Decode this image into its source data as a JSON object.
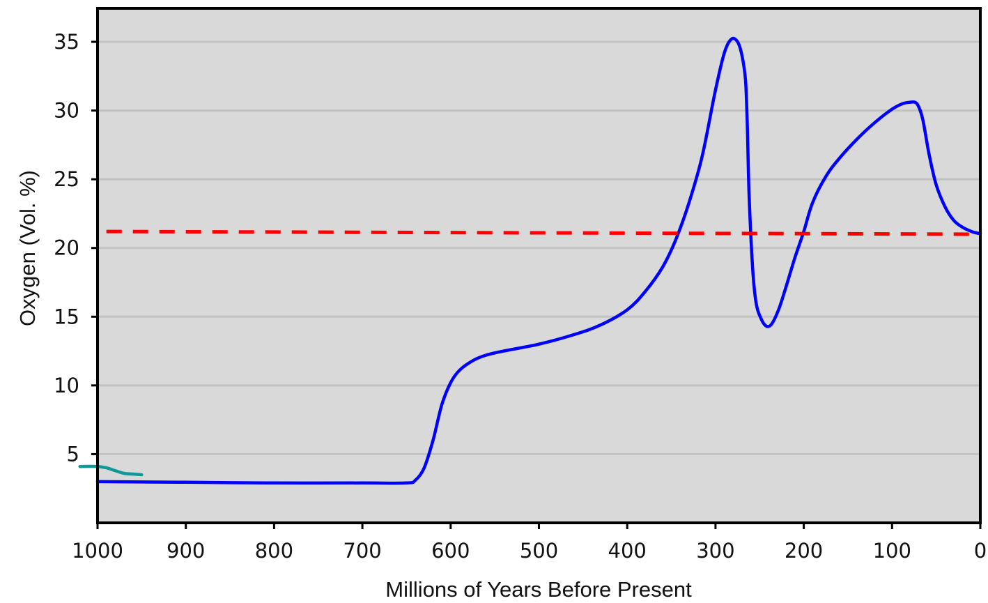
{
  "chart_data": {
    "type": "line",
    "title": "",
    "xlabel": "Millions of Years Before Present",
    "ylabel": "Oxygen (Vol. %)",
    "xlim": [
      1000,
      0
    ],
    "ylim": [
      0,
      35
    ],
    "x_ticks": [
      1000,
      900,
      800,
      700,
      600,
      500,
      400,
      300,
      200,
      100,
      0
    ],
    "y_ticks": [
      5,
      10,
      15,
      20,
      25,
      30,
      35
    ],
    "grid": "horizontal",
    "legend": "none",
    "series": [
      {
        "color": "#0000ff",
        "style": "solid",
        "x": [
          1000,
          900,
          800,
          700,
          650,
          640,
          630,
          620,
          610,
          600,
          590,
          575,
          560,
          540,
          500,
          460,
          430,
          400,
          380,
          360,
          345,
          330,
          315,
          300,
          290,
          282,
          275,
          270,
          266,
          264,
          262,
          258,
          254,
          248,
          242,
          236,
          228,
          220,
          210,
          200,
          190,
          175,
          160,
          140,
          120,
          100,
          88,
          80,
          74,
          70,
          65,
          58,
          50,
          40,
          30,
          20,
          10,
          5,
          0
        ],
        "y": [
          3.0,
          2.95,
          2.9,
          2.9,
          2.9,
          3.1,
          4.0,
          6.0,
          8.6,
          10.2,
          11.1,
          11.8,
          12.2,
          12.5,
          13.0,
          13.7,
          14.4,
          15.5,
          16.8,
          18.6,
          20.6,
          23.3,
          26.7,
          31.5,
          34.2,
          35.2,
          35.0,
          34.0,
          32.2,
          29.0,
          24.0,
          18.6,
          16.0,
          14.8,
          14.3,
          14.5,
          15.6,
          17.2,
          19.3,
          21.2,
          23.3,
          25.2,
          26.5,
          27.9,
          29.1,
          30.1,
          30.5,
          30.6,
          30.6,
          30.3,
          29.3,
          26.8,
          24.6,
          23.0,
          22.0,
          21.5,
          21.2,
          21.1,
          21.05
        ]
      },
      {
        "color": "#ff0000",
        "style": "dashed",
        "x": [
          990,
          0
        ],
        "y": [
          21.2,
          21.0
        ]
      },
      {
        "color": "#119999",
        "style": "solid",
        "x": [
          1020,
          1000,
          990,
          980,
          970,
          960,
          950
        ],
        "y": [
          4.1,
          4.1,
          4.0,
          3.8,
          3.6,
          3.55,
          3.5
        ]
      }
    ]
  }
}
